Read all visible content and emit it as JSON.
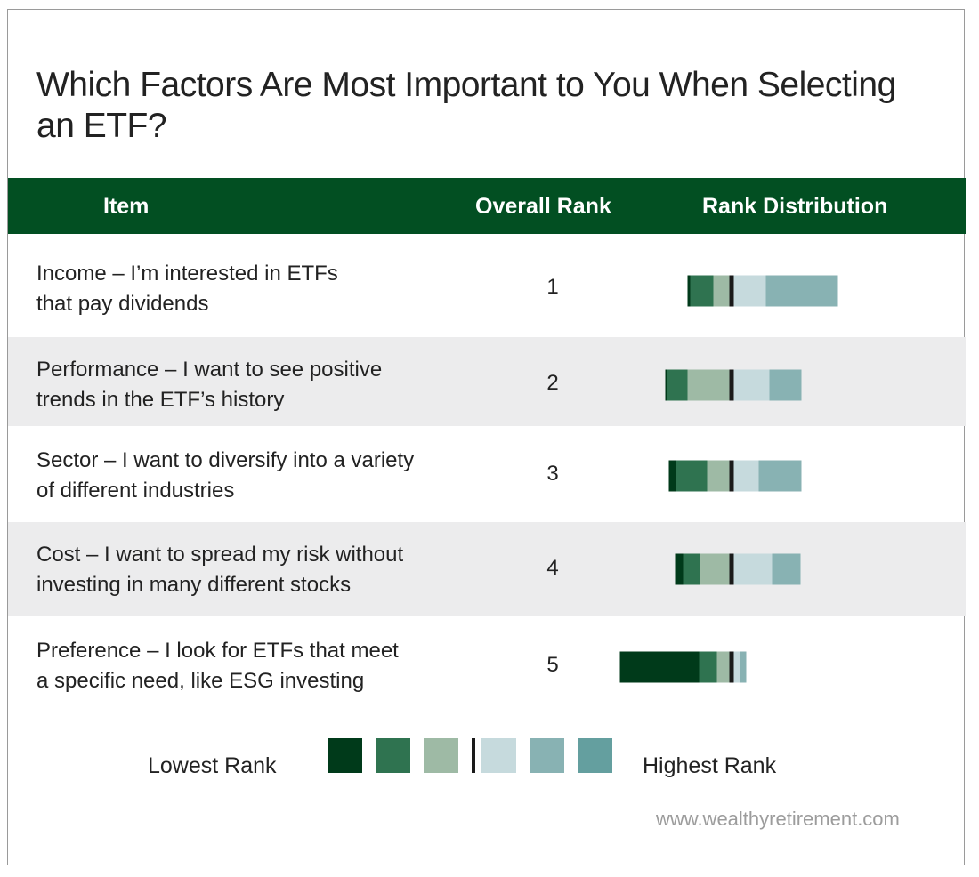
{
  "title": "Which Factors Are Most Important to You When Selecting an ETF?",
  "header": {
    "item": "Item",
    "overall_rank": "Overall Rank",
    "rank_distribution": "Rank Distribution"
  },
  "colors": {
    "header_bg": "#024f22",
    "row_shade": "#ececed",
    "rank_1": "#003a1a",
    "rank_2": "#2f7350",
    "rank_3": "#9ebaa5",
    "rank_4": "#c6dadd",
    "rank_5": "#88b2b3",
    "rank_6": "#649f9f",
    "median_marker": "#1a1a1a"
  },
  "chart_data": {
    "type": "bar",
    "orientation": "horizontal-stacked-diverging",
    "categories": [
      "Income – I’m interested in ETFs that pay dividends",
      "Performance – I want to see positive trends in the ETF’s history",
      "Sector – I want to diversify into a variety of different industries",
      "Cost – I want to spread my risk without investing in many different stocks",
      "Preference – I look for ETFs that meet a specific need, like ESG investing"
    ],
    "overall_rank": [
      "1",
      "2",
      "3",
      "4",
      "5"
    ],
    "series": [
      {
        "name": "",
        "values": [
          3,
          2,
          8,
          9,
          89
        ]
      },
      {
        "name": "",
        "values": [
          26,
          23,
          35,
          19,
          20
        ]
      },
      {
        "name": "",
        "values": [
          18,
          47,
          25,
          33,
          14
        ]
      },
      {
        "name": "",
        "values": [
          36,
          40,
          28,
          43,
          7
        ]
      },
      {
        "name": "",
        "values": [
          81,
          36,
          48,
          32,
          7
        ]
      }
    ],
    "legend": {
      "low_label": "Lowest Rank",
      "high_label": "Highest Rank",
      "swatches": 6,
      "placement": "bottom"
    }
  },
  "rows": [
    {
      "label_line1": "Income – I’m interested in ETFs",
      "label_line2": "that pay dividends"
    },
    {
      "label_line1": "Performance – I want to see positive",
      "label_line2": "trends in the ETF’s history"
    },
    {
      "label_line1": "Sector – I want to diversify into a variety",
      "label_line2": "of different industries"
    },
    {
      "label_line1": "Cost – I want to spread my risk without",
      "label_line2": "investing in many different stocks"
    },
    {
      "label_line1": "Preference – I look for ETFs that meet",
      "label_line2": "a specific need, like ESG investing"
    }
  ],
  "source": "www.wealthyretirement.com"
}
